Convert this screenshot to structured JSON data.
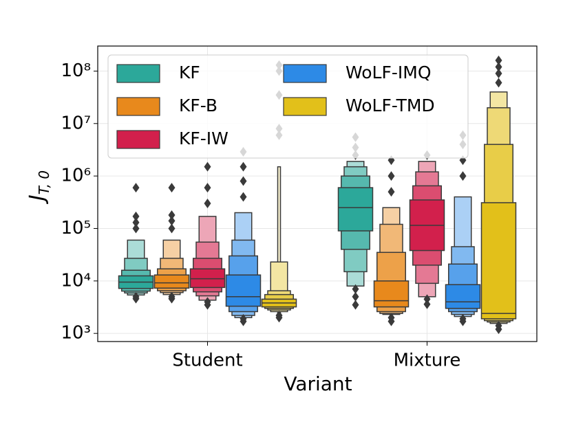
{
  "chart_data": {
    "type": "boxen",
    "categories": [
      "Student",
      "Mixture"
    ],
    "x_label": "Variant",
    "y_label": {
      "main": "J",
      "sub": "T, 0"
    },
    "y_log": true,
    "grid": true,
    "legend": "upper-left",
    "ylim": [
      700,
      300000000
    ],
    "yticks": [
      {
        "value": 1000,
        "label": "10³"
      },
      {
        "value": 10000,
        "label": "10⁴"
      },
      {
        "value": 100000,
        "label": "10⁵"
      },
      {
        "value": 1000000,
        "label": "10⁶"
      },
      {
        "value": 10000000,
        "label": "10⁷"
      },
      {
        "value": 100000000,
        "label": "10⁸"
      }
    ],
    "series": [
      {
        "name": "KF",
        "color": "#2ca89a",
        "values": [
          {
            "median": 9500,
            "boxes": [
              [
                7200,
                12500
              ],
              [
                6400,
                16000
              ],
              [
                5900,
                27000
              ],
              [
                5400,
                60000
              ]
            ],
            "outliers": [
              4600,
              5000,
              100000,
              130000,
              170000,
              600000
            ]
          },
          {
            "median": 250000,
            "boxes": [
              [
                90000,
                600000
              ],
              [
                40000,
                1000000
              ],
              [
                15000,
                1500000
              ],
              [
                8000,
                1900000
              ]
            ],
            "outliers": [
              3500,
              5000,
              7000,
              2500000,
              3500000,
              5500000
            ]
          }
        ]
      },
      {
        "name": "KF-B",
        "color": "#e8891c",
        "values": [
          {
            "median": 9200,
            "boxes": [
              [
                7300,
                13000
              ],
              [
                6500,
                17000
              ],
              [
                6000,
                27000
              ],
              [
                5500,
                60000
              ]
            ],
            "outliers": [
              4600,
              5000,
              100000,
              140000,
              180000,
              600000
            ]
          },
          {
            "median": 4200,
            "boxes": [
              [
                3200,
                10000
              ],
              [
                2600,
                35000
              ],
              [
                2400,
                120000
              ],
              [
                2300,
                250000
              ]
            ],
            "outliers": [
              1700,
              2000,
              500000,
              1000000,
              2000000
            ]
          }
        ]
      },
      {
        "name": "KF-IW",
        "color": "#d2204c",
        "values": [
          {
            "median": 11000,
            "boxes": [
              [
                7500,
                17000
              ],
              [
                6200,
                27000
              ],
              [
                5200,
                55000
              ],
              [
                4300,
                170000
              ]
            ],
            "outliers": [
              3500,
              4000,
              300000,
              600000,
              1500000
            ]
          },
          {
            "median": 115000,
            "boxes": [
              [
                38000,
                350000
              ],
              [
                20000,
                650000
              ],
              [
                9000,
                1200000
              ],
              [
                5000,
                1900000
              ]
            ],
            "outliers": [
              3600,
              4500,
              2500000
            ]
          }
        ]
      },
      {
        "name": "WoLF-IMQ",
        "color": "#2d8ae6",
        "values": [
          {
            "median": 5000,
            "boxes": [
              [
                3300,
                13000
              ],
              [
                2600,
                30000
              ],
              [
                2200,
                60000
              ],
              [
                2000,
                200000
              ]
            ],
            "outliers": [
              1700,
              1900,
              400000,
              800000,
              1500000,
              2900000
            ]
          },
          {
            "median": 4000,
            "boxes": [
              [
                3000,
                8500
              ],
              [
                2600,
                21000
              ],
              [
                2300,
                45000
              ],
              [
                2100,
                400000
              ]
            ],
            "outliers": [
              1700,
              1900,
              1000000,
              2000000,
              4000000,
              6000000
            ]
          }
        ]
      },
      {
        "name": "WoLF-TMD",
        "color": "#e2c01a",
        "values": [
          {
            "median": 3800,
            "boxes": [
              [
                3200,
                4500
              ],
              [
                3000,
                5500
              ],
              [
                2800,
                6500
              ],
              [
                2600,
                23000
              ],
              [
                2400,
                1500000
              ]
            ],
            "outliers": [
              2000,
              2200,
              6000000,
              8000000,
              35000000,
              100000000,
              130000000
            ]
          },
          {
            "median": 2400,
            "boxes": [
              [
                1900,
                310000
              ],
              [
                1750,
                4000000
              ],
              [
                1650,
                20000000
              ],
              [
                1550,
                40000000
              ]
            ],
            "outliers": [
              1200,
              1400,
              60000000,
              90000000,
              120000000,
              160000000
            ]
          }
        ]
      }
    ]
  }
}
